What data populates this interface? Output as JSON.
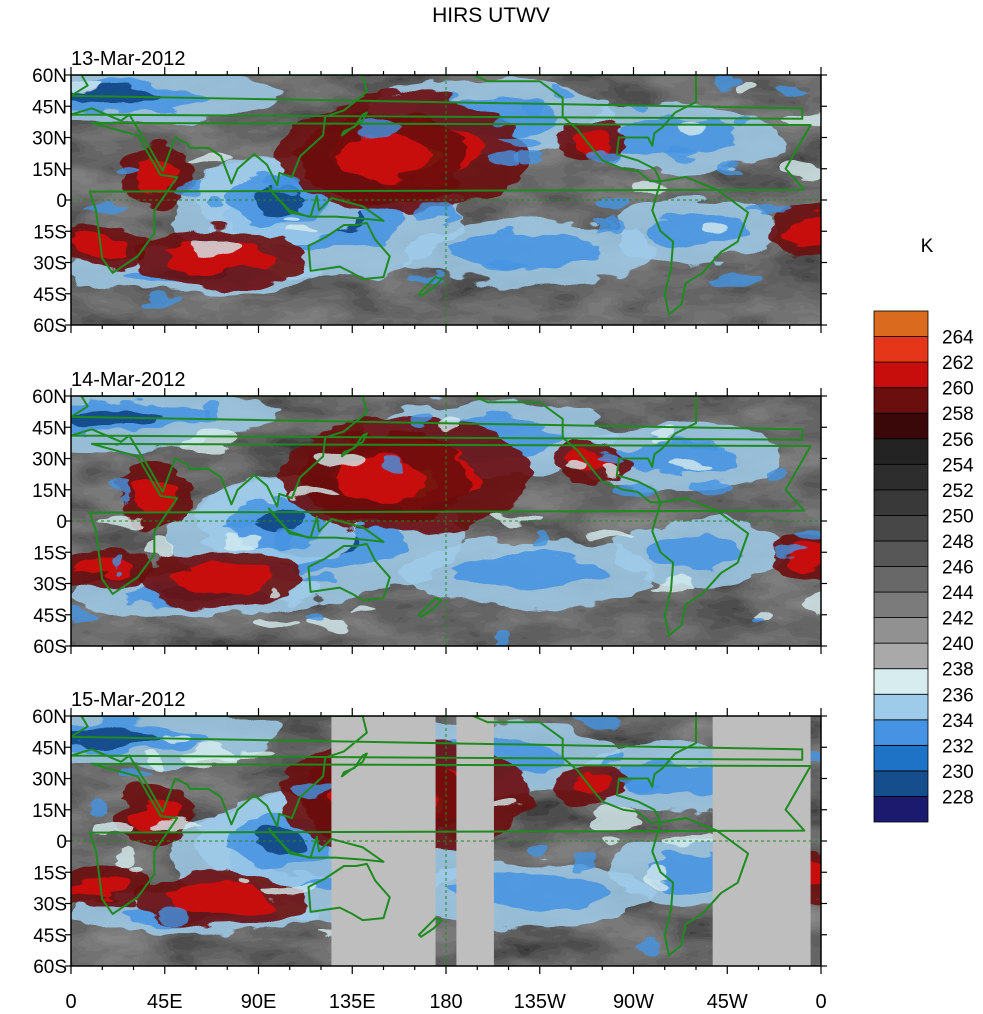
{
  "figure": {
    "title": "HIRS UTWV",
    "unit_label": "K"
  },
  "chart_data": {
    "type": "heatmap",
    "title": "HIRS UTWV",
    "colorbar_unit": "K",
    "panels": [
      {
        "date": "13-Mar-2012",
        "coverage": "full"
      },
      {
        "date": "14-Mar-2012",
        "coverage": "full"
      },
      {
        "date": "15-Mar-2012",
        "coverage": "partial",
        "missing_lon_ranges": [
          [
            125,
            175
          ],
          [
            -175,
            -157
          ],
          [
            -52,
            -5
          ]
        ]
      }
    ],
    "lat_ticks": [
      "60N",
      "45N",
      "30N",
      "15N",
      "0",
      "15S",
      "30S",
      "45S",
      "60S"
    ],
    "lat_values": [
      60,
      45,
      30,
      15,
      0,
      -15,
      -30,
      -45,
      -60
    ],
    "lon_ticks": [
      "0",
      "45E",
      "90E",
      "135E",
      "180",
      "135W",
      "90W",
      "45W",
      "0"
    ],
    "lon_values": [
      0,
      45,
      90,
      135,
      180,
      225,
      270,
      315,
      360
    ],
    "xlim": [
      0,
      360
    ],
    "ylim": [
      -60,
      60
    ],
    "colorbar": {
      "levels": [
        228,
        230,
        232,
        234,
        236,
        238,
        240,
        242,
        244,
        246,
        248,
        250,
        252,
        254,
        256,
        258,
        260,
        262,
        264
      ],
      "colors": [
        "#1b1a6e",
        "#164d8c",
        "#1f73c7",
        "#4593e2",
        "#9fcbea",
        "#d6ecef",
        "#a9a9a9",
        "#919191",
        "#7b7b7b",
        "#686868",
        "#575757",
        "#474747",
        "#393939",
        "#2d2d2d",
        "#232323",
        "#3a0808",
        "#6b0e0e",
        "#c80d0d",
        "#e6361a",
        "#d96a1e"
      ]
    },
    "grid": false,
    "legend_position": "right"
  }
}
